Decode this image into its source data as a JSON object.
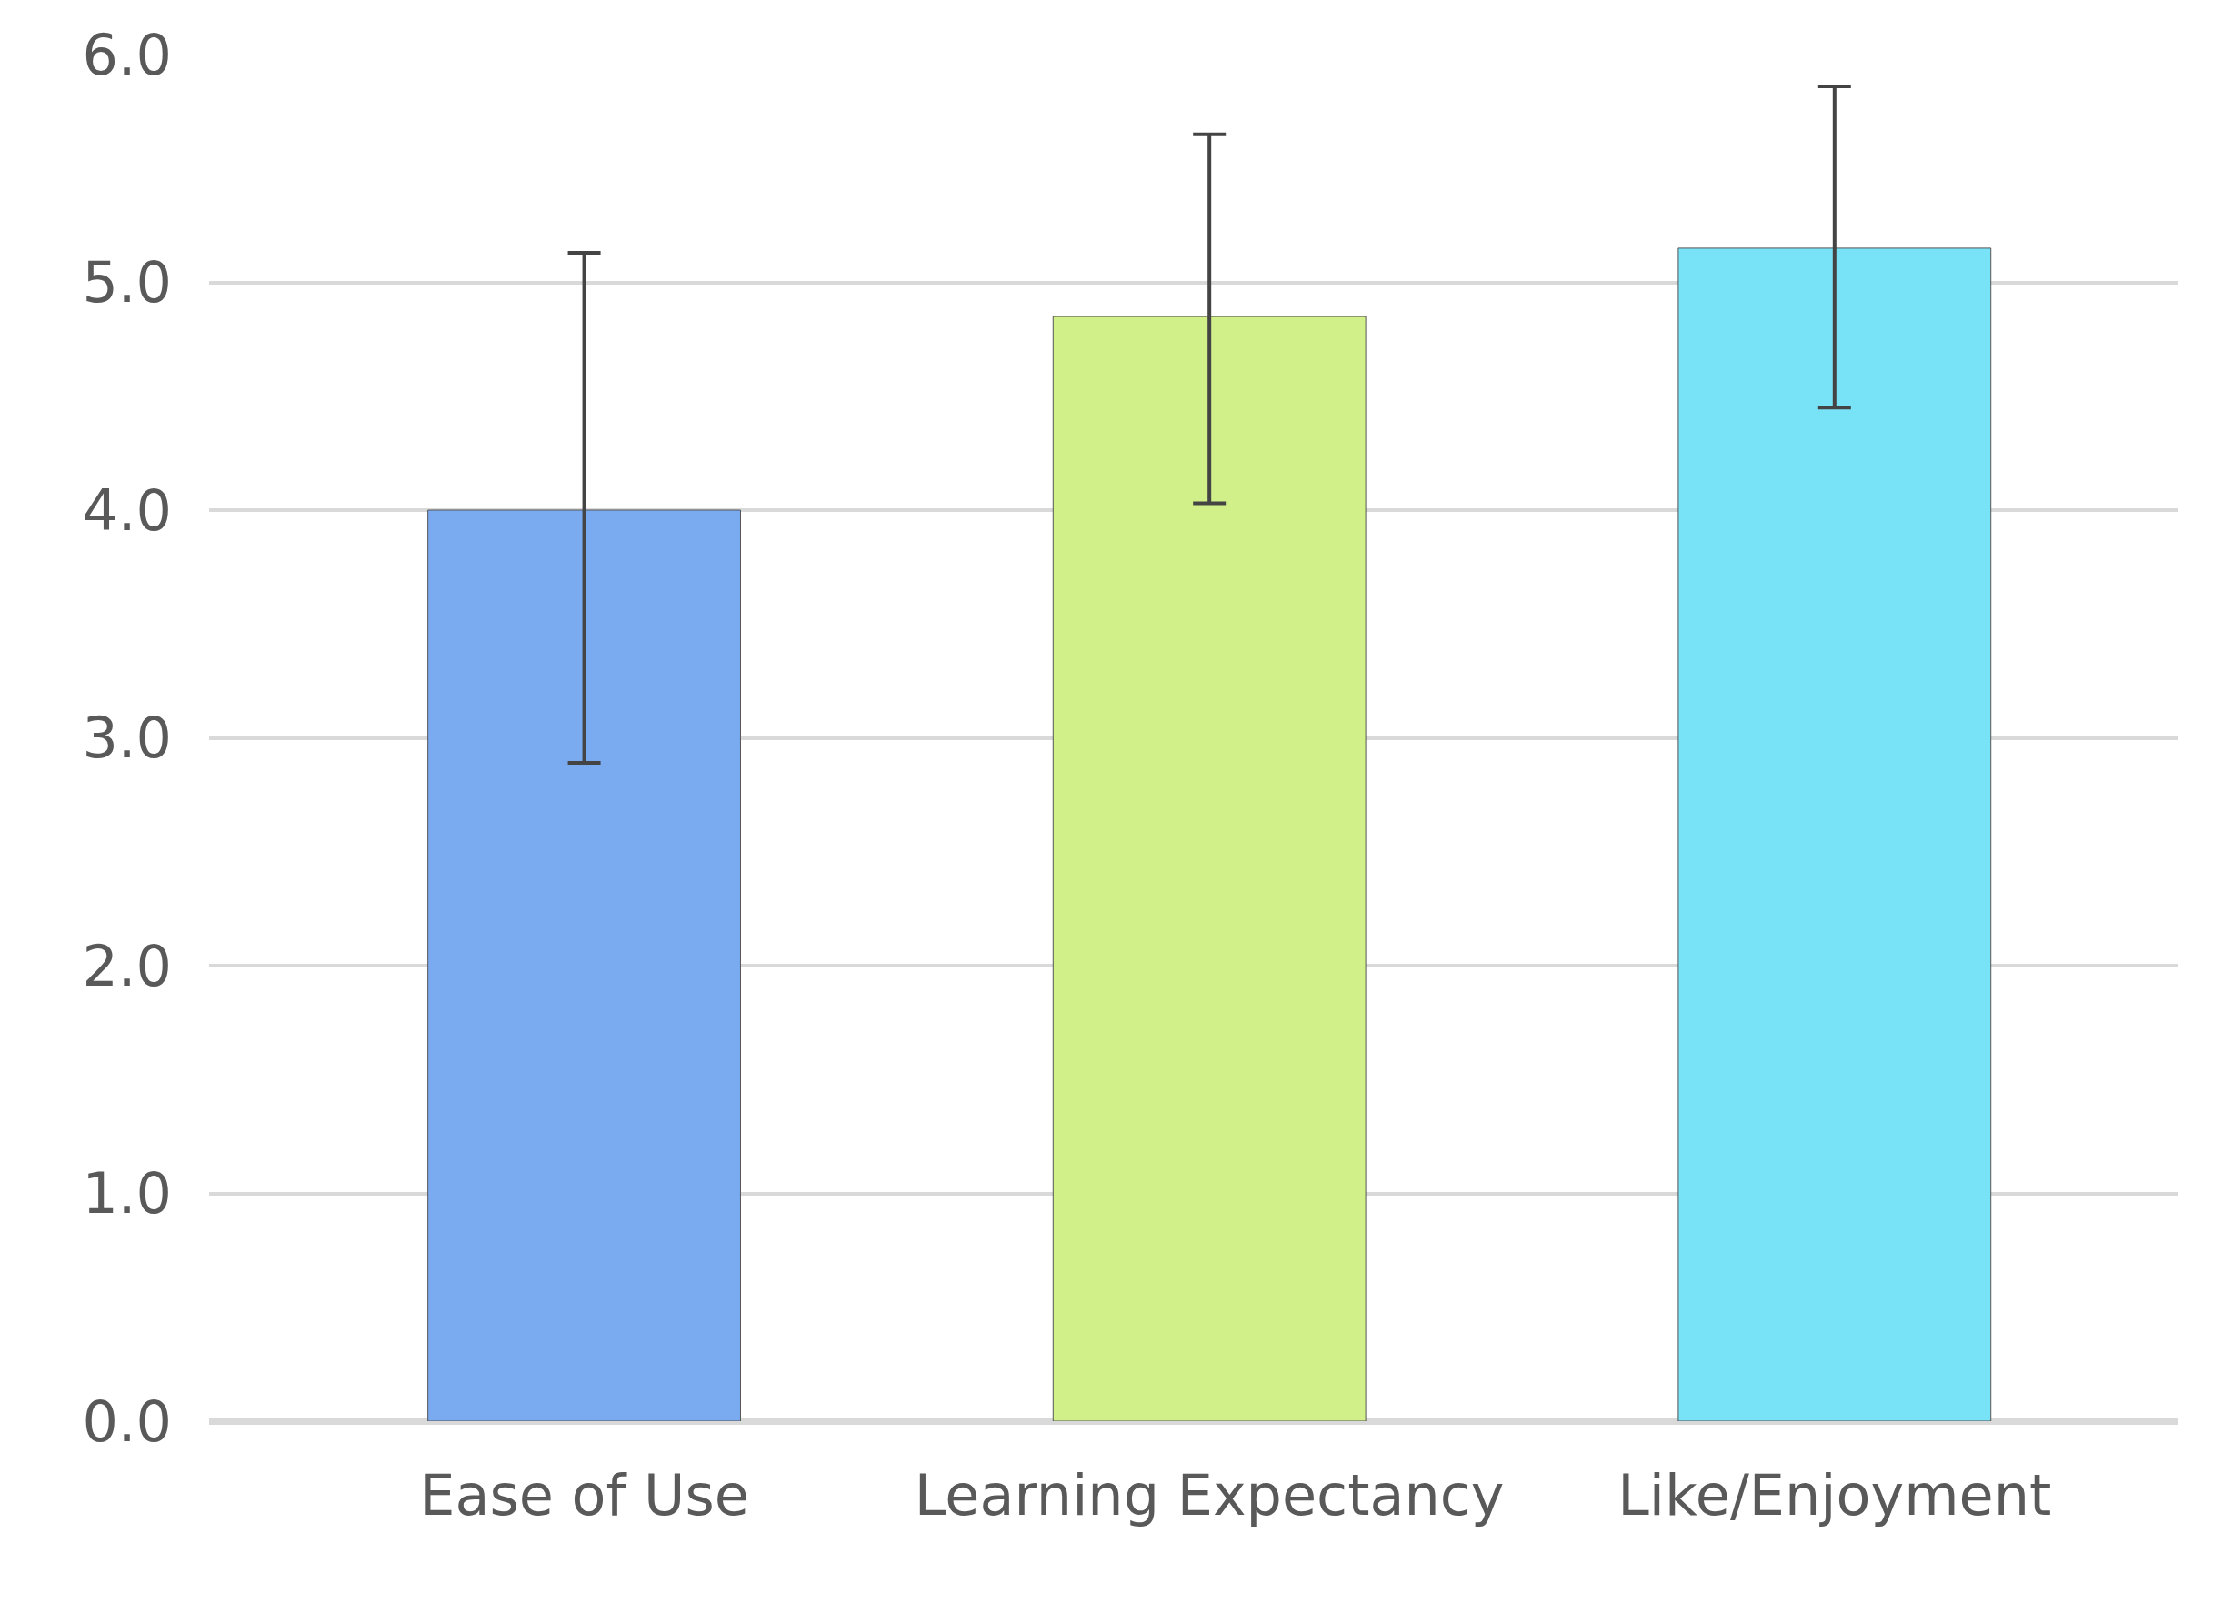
{
  "chart_data": {
    "type": "bar",
    "categories": [
      "Ease of Use",
      "Learning Expectancy",
      "Like/Enjoyment"
    ],
    "values": [
      4.0,
      4.85,
      5.15
    ],
    "colors": [
      "#7aaaf0",
      "#d2f08a",
      "#78e2f6"
    ],
    "errors": [
      [
        2.89,
        5.13
      ],
      [
        4.03,
        5.65
      ],
      [
        4.45,
        5.86
      ]
    ],
    "ylim": [
      0,
      6
    ],
    "yticks": [
      {
        "value": 0,
        "label": "0.0"
      },
      {
        "value": 1,
        "label": "1.0"
      },
      {
        "value": 2,
        "label": "2.0"
      },
      {
        "value": 3,
        "label": "3.0"
      },
      {
        "value": 4,
        "label": "4.0"
      },
      {
        "value": 5,
        "label": "5.0"
      },
      {
        "value": 6,
        "label": "6.0"
      }
    ],
    "grid": "y"
  }
}
